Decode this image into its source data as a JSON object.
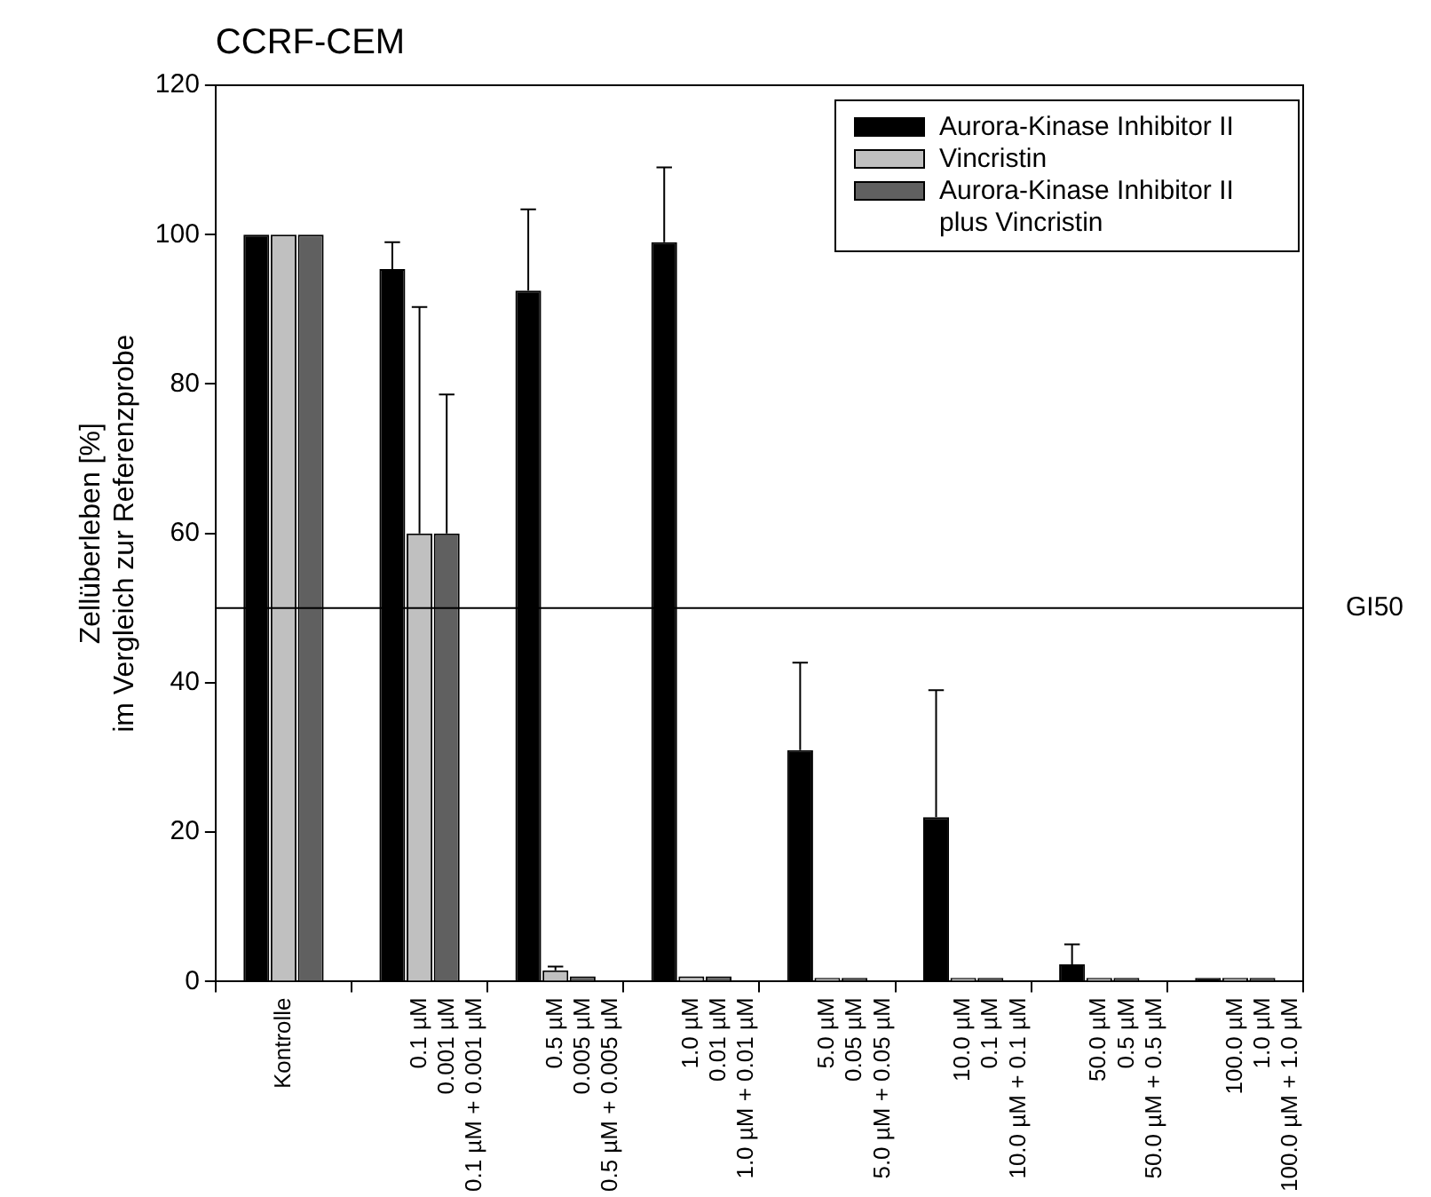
{
  "chart_data": {
    "type": "bar",
    "title": "CCRF-CEM",
    "ylabel": "Zellüberleben [%]\nim Vergleich zur Referenzprobe",
    "categories": [
      "Kontrolle",
      "0.1 µM\n0.001 µM\n0.1 µM + 0.001 µM",
      "0.5 µM\n0.005 µM\n0.5 µM + 0.005 µM",
      "1.0 µM\n0.01 µM\n1.0 µM + 0.01 µM",
      "5.0 µM\n0.05 µM\n5.0 µM + 0.05 µM",
      "10.0 µM\n0.1 µM\n10.0 µM + 0.1 µM",
      "50.0 µM\n0.5 µM\n50.0 µM + 0.5 µM",
      "100.0 µM\n1.0 µM\n100.0 µM + 1.0 µM"
    ],
    "series": [
      {
        "name": "Aurora-Kinase Inhibitor II",
        "color": "#000000",
        "values": [
          100,
          95.4,
          92.5,
          99,
          31,
          22,
          2.3,
          0.5
        ],
        "errors": [
          null,
          [
            95.4,
            99
          ],
          [
            92.5,
            103.4
          ],
          [
            99,
            109
          ],
          [
            31,
            42.7
          ],
          [
            22,
            39
          ],
          [
            2.3,
            5
          ],
          null
        ]
      },
      {
        "name": "Vincristin",
        "color": "#c0c0c0",
        "values": [
          100,
          60,
          1.5,
          0.7,
          0.5,
          0.5,
          0.5,
          0.5
        ],
        "errors": [
          null,
          [
            60,
            90.3
          ],
          [
            1.5,
            2
          ],
          null,
          null,
          null,
          null,
          null
        ]
      },
      {
        "name": "Aurora-Kinase Inhibitor II plus Vincristin",
        "color": "#606060",
        "values": [
          100,
          60,
          0.7,
          0.7,
          0.5,
          0.5,
          0.5,
          0.5
        ],
        "errors": [
          null,
          [
            60,
            78.6
          ],
          null,
          null,
          null,
          null,
          null,
          null
        ]
      }
    ],
    "ylim": [
      0,
      120
    ],
    "yticks": [
      0,
      20,
      40,
      60,
      80,
      100,
      120
    ],
    "grid": false,
    "legend": "top right",
    "ref_lines": [
      {
        "axis": "y",
        "value": 50,
        "label": "GI50",
        "color": "#000000"
      }
    ]
  }
}
